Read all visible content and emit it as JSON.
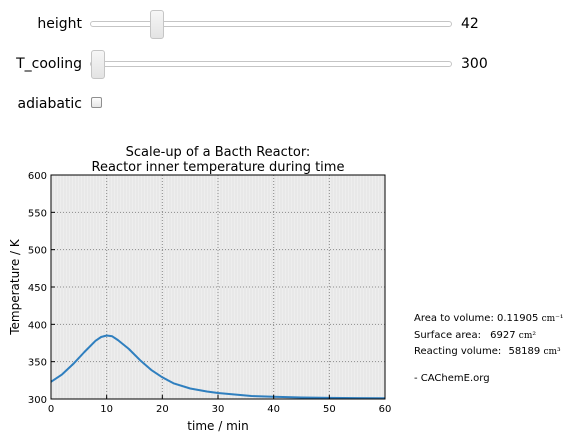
{
  "widgets": {
    "height": {
      "label": "height",
      "value": "42",
      "fraction": 0.17
    },
    "t_cooling": {
      "label": "T_cooling",
      "value": "300",
      "fraction": 0.0
    },
    "adiabatic": {
      "label": "adiabatic",
      "checked": false
    }
  },
  "chart_data": {
    "type": "line",
    "title": "Scale-up of a Bacth Reactor:",
    "subtitle": "Reactor inner temperature during time",
    "xlabel": "time / min",
    "ylabel": "Temperature / K",
    "xlim": [
      0,
      60
    ],
    "ylim": [
      300,
      600
    ],
    "xticks": [
      0,
      10,
      20,
      30,
      40,
      50,
      60
    ],
    "yticks": [
      300,
      350,
      400,
      450,
      500,
      550,
      600
    ],
    "grid": true,
    "series": [
      {
        "color": "#2f7fbf",
        "x": [
          0,
          2,
          4,
          6,
          8,
          9,
          10,
          11,
          12,
          14,
          16,
          18,
          20,
          22,
          25,
          28,
          30,
          33,
          36,
          40,
          45,
          50,
          55,
          60
        ],
        "y": [
          323,
          333,
          347,
          363,
          378,
          383,
          385,
          384,
          379,
          367,
          352,
          339,
          329,
          321,
          314,
          310,
          308,
          306,
          304,
          303,
          302,
          301.5,
          301.2,
          301
        ]
      }
    ]
  },
  "info": {
    "area_to_volume_label": "Area to volume:",
    "area_to_volume_value": "0.11905",
    "area_to_volume_unit": "cm⁻¹",
    "surface_area_label": "Surface area:",
    "surface_area_value": "6927",
    "surface_area_unit": "cm²",
    "reacting_volume_label": "Reacting volume:",
    "reacting_volume_value": "58189",
    "reacting_volume_unit": "cm³",
    "credit": "- CAChemE.org"
  }
}
